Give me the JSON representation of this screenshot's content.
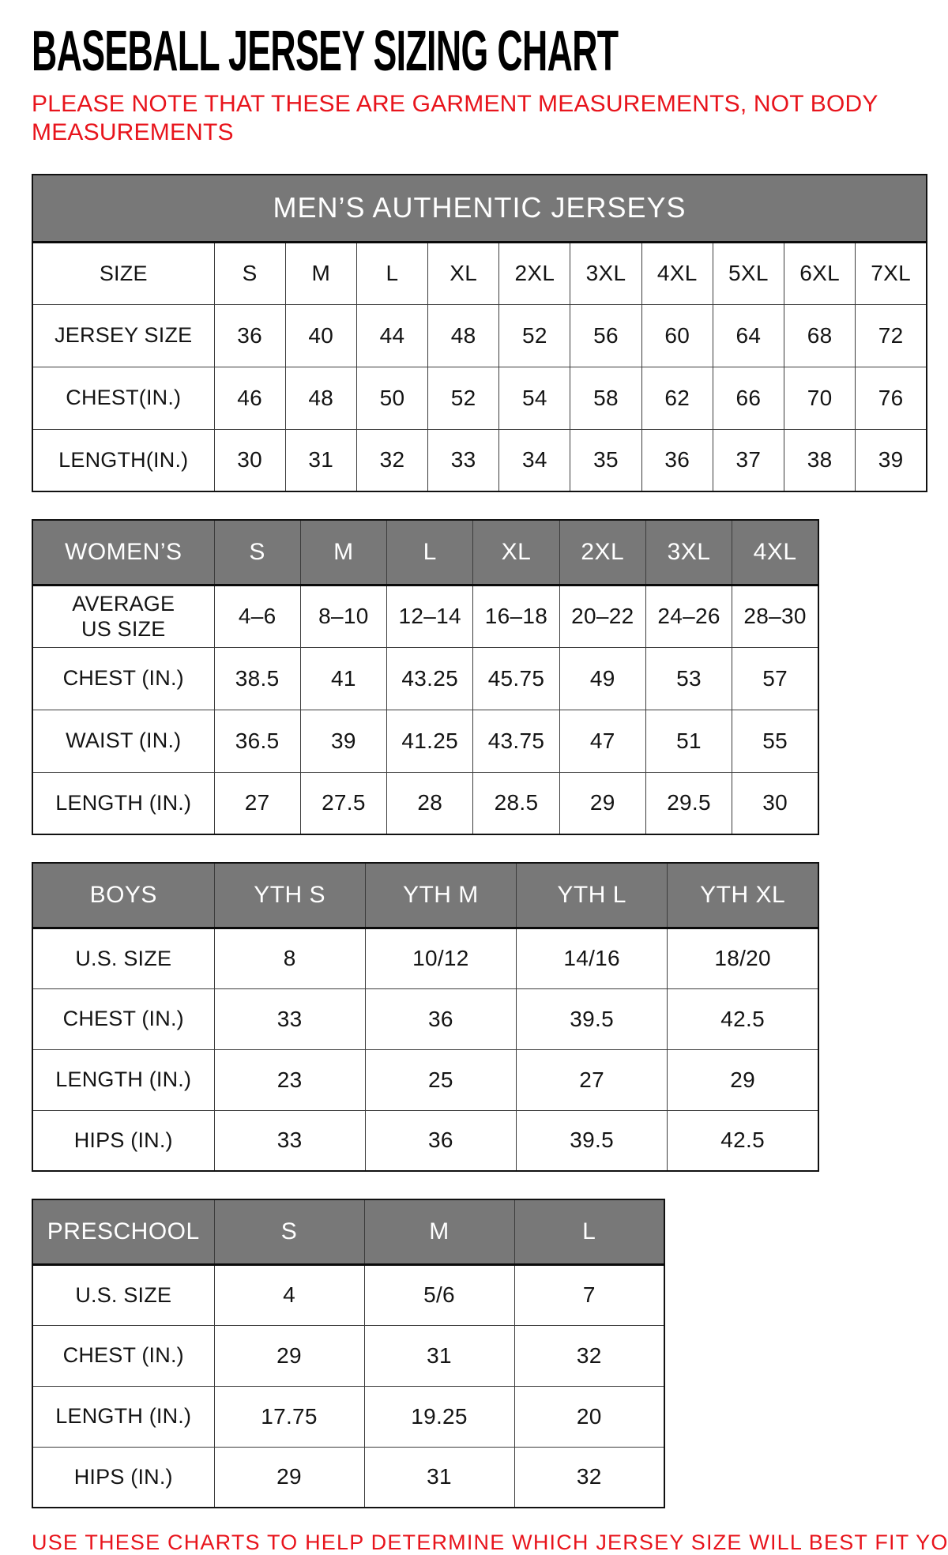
{
  "page": {
    "title": "BASEBALL JERSEY SIZING CHART",
    "note": "PLEASE NOTE THAT THESE ARE GARMENT MEASUREMENTS, NOT BODY MEASUREMENTS",
    "footer": "USE THESE CHARTS TO HELP DETERMINE WHICH JERSEY SIZE WILL BEST FIT YOU."
  },
  "colors": {
    "accent_red": "#e8141c",
    "header_gray": "#787878",
    "header_text": "#ffffff",
    "grid_border": "#3c3c3c"
  },
  "tables": {
    "mens": {
      "title": "MEN’S AUTHENTIC JERSEYS",
      "rows": [
        [
          "SIZE",
          "S",
          "M",
          "L",
          "XL",
          "2XL",
          "3XL",
          "4XL",
          "5XL",
          "6XL",
          "7XL"
        ],
        [
          "JERSEY SIZE",
          "36",
          "40",
          "44",
          "48",
          "52",
          "56",
          "60",
          "64",
          "68",
          "72"
        ],
        [
          "CHEST(IN.)",
          "46",
          "48",
          "50",
          "52",
          "54",
          "58",
          "62",
          "66",
          "70",
          "76"
        ],
        [
          "LENGTH(IN.)",
          "30",
          "31",
          "32",
          "33",
          "34",
          "35",
          "36",
          "37",
          "38",
          "39"
        ]
      ]
    },
    "womens": {
      "header": [
        "WOMEN’S",
        "S",
        "M",
        "L",
        "XL",
        "2XL",
        "3XL",
        "4XL"
      ],
      "rows": [
        [
          "AVERAGE\nUS SIZE",
          "4–6",
          "8–10",
          "12–14",
          "16–18",
          "20–22",
          "24–26",
          "28–30"
        ],
        [
          "CHEST (IN.)",
          "38.5",
          "41",
          "43.25",
          "45.75",
          "49",
          "53",
          "57"
        ],
        [
          "WAIST (IN.)",
          "36.5",
          "39",
          "41.25",
          "43.75",
          "47",
          "51",
          "55"
        ],
        [
          "LENGTH (IN.)",
          "27",
          "27.5",
          "28",
          "28.5",
          "29",
          "29.5",
          "30"
        ]
      ]
    },
    "boys": {
      "header": [
        "BOYS",
        "YTH S",
        "YTH M",
        "YTH L",
        "YTH XL"
      ],
      "rows": [
        [
          "U.S. SIZE",
          "8",
          "10/12",
          "14/16",
          "18/20"
        ],
        [
          "CHEST (IN.)",
          "33",
          "36",
          "39.5",
          "42.5"
        ],
        [
          "LENGTH (IN.)",
          "23",
          "25",
          "27",
          "29"
        ],
        [
          "HIPS (IN.)",
          "33",
          "36",
          "39.5",
          "42.5"
        ]
      ]
    },
    "preschool": {
      "header": [
        "PRESCHOOL",
        "S",
        "M",
        "L"
      ],
      "rows": [
        [
          "U.S. SIZE",
          "4",
          "5/6",
          "7"
        ],
        [
          "CHEST (IN.)",
          "29",
          "31",
          "32"
        ],
        [
          "LENGTH (IN.)",
          "17.75",
          "19.25",
          "20"
        ],
        [
          "HIPS (IN.)",
          "29",
          "31",
          "32"
        ]
      ]
    }
  }
}
